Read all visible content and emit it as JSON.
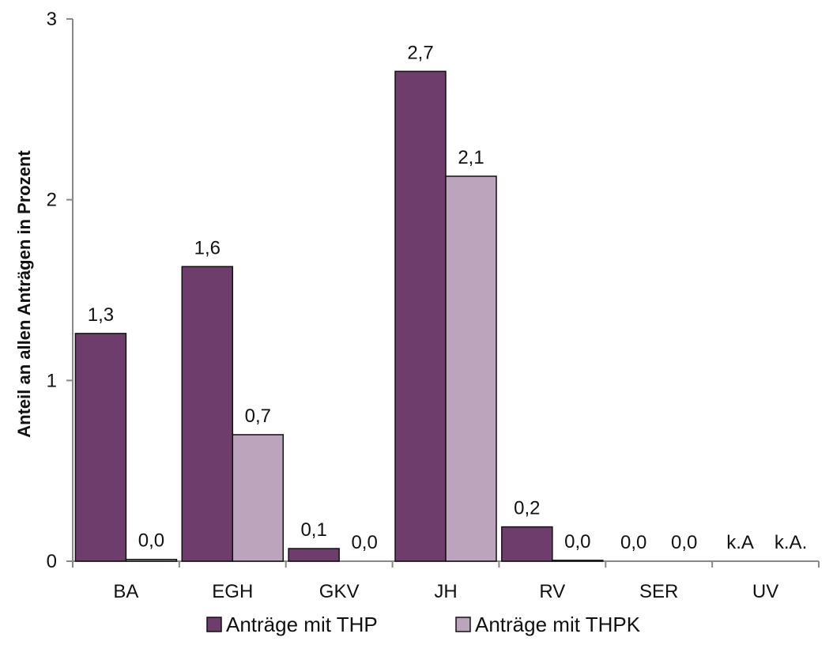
{
  "chart_data": {
    "type": "bar",
    "ylabel": "Anteil an allen Anträgen in Prozent",
    "ylim": [
      0,
      3
    ],
    "yticks": [
      "0",
      "1",
      "2",
      "3"
    ],
    "categories": [
      "BA",
      "EGH",
      "GKV",
      "JH",
      "RV",
      "SER",
      "UV"
    ],
    "series": [
      {
        "name": "Anträge mit THP",
        "color": "#6f3d6b",
        "values": [
          1.26,
          1.63,
          0.07,
          2.71,
          0.19,
          0,
          0
        ],
        "labels": [
          "1,3",
          "1,6",
          "0,1",
          "2,7",
          "0,2",
          "0,0",
          "k.A"
        ]
      },
      {
        "name": "Anträge mit THPK",
        "color": "#bca5bc",
        "values": [
          0.01,
          0.7,
          0,
          2.13,
          0.005,
          0,
          0
        ],
        "labels": [
          "0,0",
          "0,7",
          "0,0",
          "2,1",
          "0,0",
          "0,0",
          "k.A."
        ]
      }
    ],
    "grid": false,
    "legend": "bottom"
  }
}
